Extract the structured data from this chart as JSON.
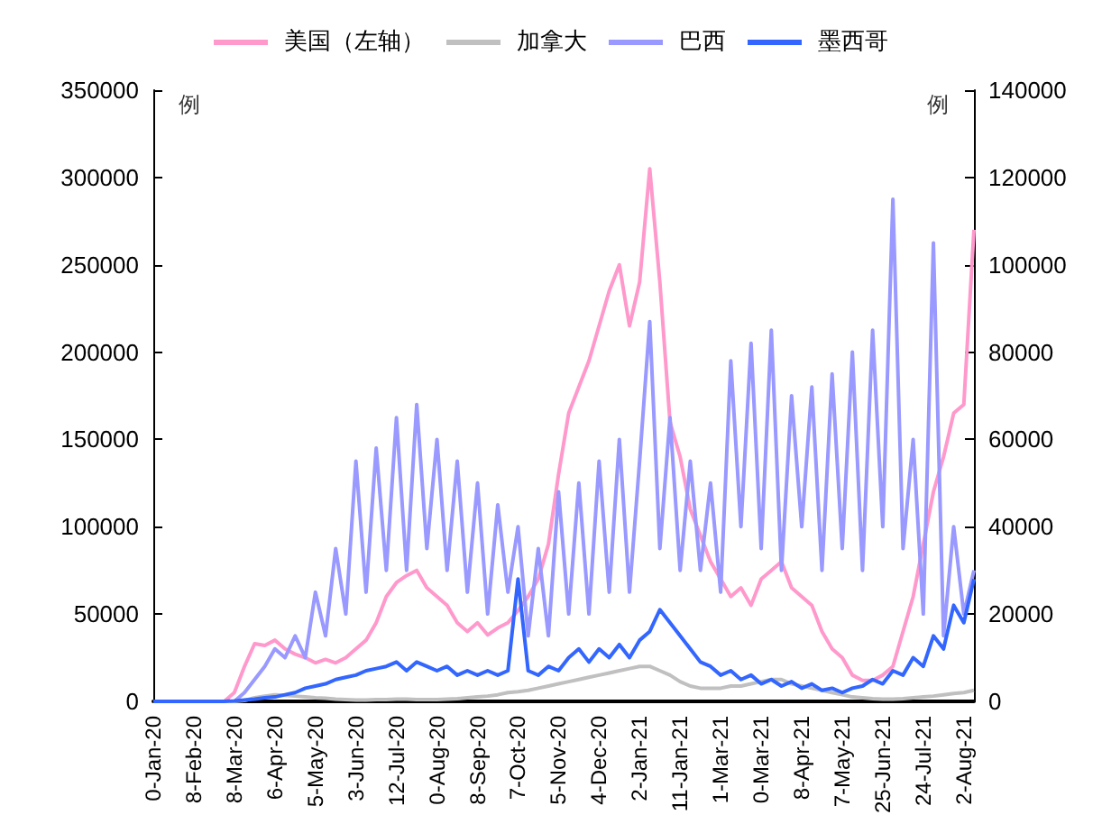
{
  "chart_data": {
    "type": "line",
    "ylabel": "例",
    "y2label": "例",
    "categories": [
      "0-Jan-20",
      null,
      null,
      null,
      "8-Feb-20",
      null,
      null,
      null,
      "8-Mar-20",
      null,
      null,
      null,
      "6-Apr-20",
      null,
      null,
      null,
      "5-May-20",
      null,
      null,
      null,
      "3-Jun-20",
      null,
      null,
      null,
      "12-Jul-20",
      null,
      null,
      null,
      "0-Aug-20",
      null,
      null,
      null,
      "8-Sep-20",
      null,
      null,
      null,
      "7-Oct-20",
      null,
      null,
      null,
      "5-Nov-20",
      null,
      null,
      null,
      "4-Dec-20",
      null,
      null,
      null,
      "2-Jan-21",
      null,
      null,
      null,
      "11-Jan-21",
      null,
      null,
      null,
      "1-Mar-21",
      null,
      null,
      null,
      "0-Mar-21",
      null,
      null,
      null,
      "8-Apr-21",
      null,
      null,
      null,
      "7-May-21",
      null,
      null,
      null,
      "25-Jun-21",
      null,
      null,
      null,
      "24-Jul-21",
      null,
      null,
      null,
      "2-Aug-21",
      null
    ],
    "series": [
      {
        "name": "美国（左轴）",
        "color": "#ff99cc",
        "values": [
          null,
          null,
          null,
          null,
          null,
          null,
          0,
          0,
          5000,
          20000,
          33000,
          32000,
          35000,
          30000,
          27000,
          25000,
          22000,
          24000,
          22000,
          25000,
          30000,
          35000,
          45000,
          60000,
          68000,
          72000,
          75000,
          65000,
          60000,
          55000,
          45000,
          40000,
          45000,
          38000,
          42000,
          45000,
          52000,
          60000,
          70000,
          90000,
          130000,
          165000,
          180000,
          195000,
          215000,
          235000,
          250000,
          215000,
          240000,
          305000,
          240000,
          160000,
          140000,
          110000,
          95000,
          80000,
          70000,
          60000,
          65000,
          55000,
          70000,
          75000,
          80000,
          65000,
          60000,
          55000,
          40000,
          30000,
          25000,
          15000,
          12000,
          12000,
          15000,
          20000,
          40000,
          60000,
          90000,
          120000,
          140000,
          165000,
          170000,
          270000
        ]
      },
      {
        "name": "加拿大",
        "color": "#c0c0c0",
        "axis": "y2",
        "values": [
          0,
          0,
          0,
          0,
          0,
          0,
          0,
          0,
          0,
          200,
          800,
          1200,
          1500,
          1400,
          1200,
          1000,
          800,
          700,
          500,
          400,
          300,
          300,
          400,
          400,
          500,
          500,
          400,
          400,
          400,
          500,
          600,
          800,
          1000,
          1200,
          1500,
          2000,
          2200,
          2500,
          3000,
          3500,
          4000,
          4500,
          5000,
          5500,
          6000,
          6500,
          7000,
          7500,
          8000,
          8000,
          7000,
          6000,
          4500,
          3500,
          3000,
          3000,
          3000,
          3500,
          3500,
          4000,
          4500,
          5000,
          5000,
          4000,
          3500,
          3000,
          2500,
          2000,
          1500,
          1000,
          800,
          600,
          500,
          500,
          600,
          800,
          1000,
          1200,
          1500,
          1800,
          2000,
          2500
        ]
      },
      {
        "name": "巴西",
        "color": "#9999ff",
        "axis": "y2",
        "values": [
          null,
          null,
          null,
          null,
          null,
          null,
          null,
          null,
          0,
          2000,
          5000,
          8000,
          12000,
          10000,
          15000,
          10000,
          25000,
          15000,
          35000,
          20000,
          55000,
          25000,
          58000,
          30000,
          65000,
          30000,
          68000,
          35000,
          60000,
          30000,
          55000,
          25000,
          50000,
          20000,
          45000,
          25000,
          40000,
          15000,
          35000,
          15000,
          48000,
          20000,
          50000,
          20000,
          55000,
          25000,
          60000,
          25000,
          55000,
          87000,
          35000,
          65000,
          30000,
          55000,
          30000,
          50000,
          25000,
          78000,
          40000,
          82000,
          35000,
          85000,
          30000,
          70000,
          40000,
          72000,
          30000,
          75000,
          35000,
          80000,
          30000,
          85000,
          40000,
          115000,
          35000,
          60000,
          20000,
          105000,
          15000,
          40000,
          20000,
          30000
        ]
      },
      {
        "name": "墨西哥",
        "color": "#3366ff",
        "axis": "y2",
        "values": [
          0,
          0,
          0,
          0,
          0,
          0,
          0,
          0,
          100,
          300,
          500,
          800,
          1000,
          1500,
          2000,
          3000,
          3500,
          4000,
          5000,
          5500,
          6000,
          7000,
          7500,
          8000,
          9000,
          7000,
          9000,
          8000,
          7000,
          8000,
          6000,
          7000,
          6000,
          7000,
          6000,
          7000,
          28000,
          7000,
          6000,
          8000,
          7000,
          10000,
          12000,
          9000,
          12000,
          10000,
          13000,
          10000,
          14000,
          16000,
          21000,
          18000,
          15000,
          12000,
          9000,
          8000,
          6000,
          7000,
          5000,
          6000,
          4000,
          5000,
          3500,
          4500,
          3000,
          4000,
          2500,
          3000,
          2000,
          3000,
          3500,
          5000,
          4000,
          7000,
          6000,
          10000,
          8000,
          15000,
          12000,
          22000,
          18000,
          28000
        ]
      }
    ],
    "ylim": [
      0,
      350000
    ],
    "yticks": [
      0,
      50000,
      100000,
      150000,
      200000,
      250000,
      300000,
      350000
    ],
    "y2lim": [
      0,
      140000
    ],
    "y2ticks": [
      0,
      20000,
      40000,
      60000,
      80000,
      100000,
      120000,
      140000
    ],
    "grid": false,
    "legend": "top",
    "marker": "none",
    "line_style": "solid"
  }
}
